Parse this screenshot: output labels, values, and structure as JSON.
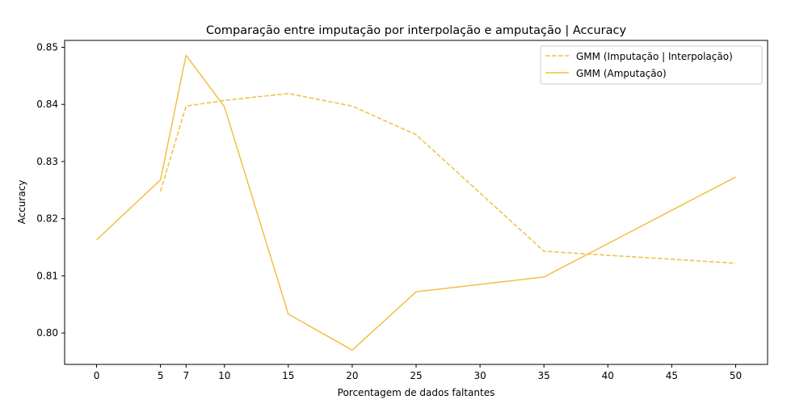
{
  "chart_data": {
    "type": "line",
    "title": "Comparação entre imputação por interpolação e amputação | Accuracy",
    "xlabel": "Porcentagem de dados faltantes",
    "ylabel": "Accuracy",
    "xlim": [
      -2.5,
      52.5
    ],
    "ylim": [
      0.7945,
      0.8512
    ],
    "xticks": [
      0,
      5,
      7,
      10,
      15,
      20,
      25,
      30,
      35,
      40,
      45,
      50
    ],
    "yticks": [
      0.8,
      0.81,
      0.82,
      0.83,
      0.84,
      0.85
    ],
    "ytick_labels": [
      "0.80",
      "0.81",
      "0.82",
      "0.83",
      "0.84",
      "0.85"
    ],
    "grid": false,
    "legend_position": "top-right",
    "series": [
      {
        "name": "GMM (Imputação | Interpolação)",
        "color": "#f0c040",
        "style": "dashed",
        "x": [
          5,
          7,
          10,
          15,
          20,
          25,
          35,
          50
        ],
        "y": [
          0.8248,
          0.8397,
          0.8407,
          0.8419,
          0.8397,
          0.8347,
          0.8143,
          0.8122
        ]
      },
      {
        "name": "GMM (Amputação)",
        "color": "#f0c040",
        "style": "solid",
        "x": [
          0,
          5,
          7,
          10,
          15,
          20,
          25,
          35,
          50
        ],
        "y": [
          0.8163,
          0.8268,
          0.8486,
          0.8396,
          0.8033,
          0.797,
          0.8072,
          0.8098,
          0.8273
        ]
      }
    ]
  }
}
